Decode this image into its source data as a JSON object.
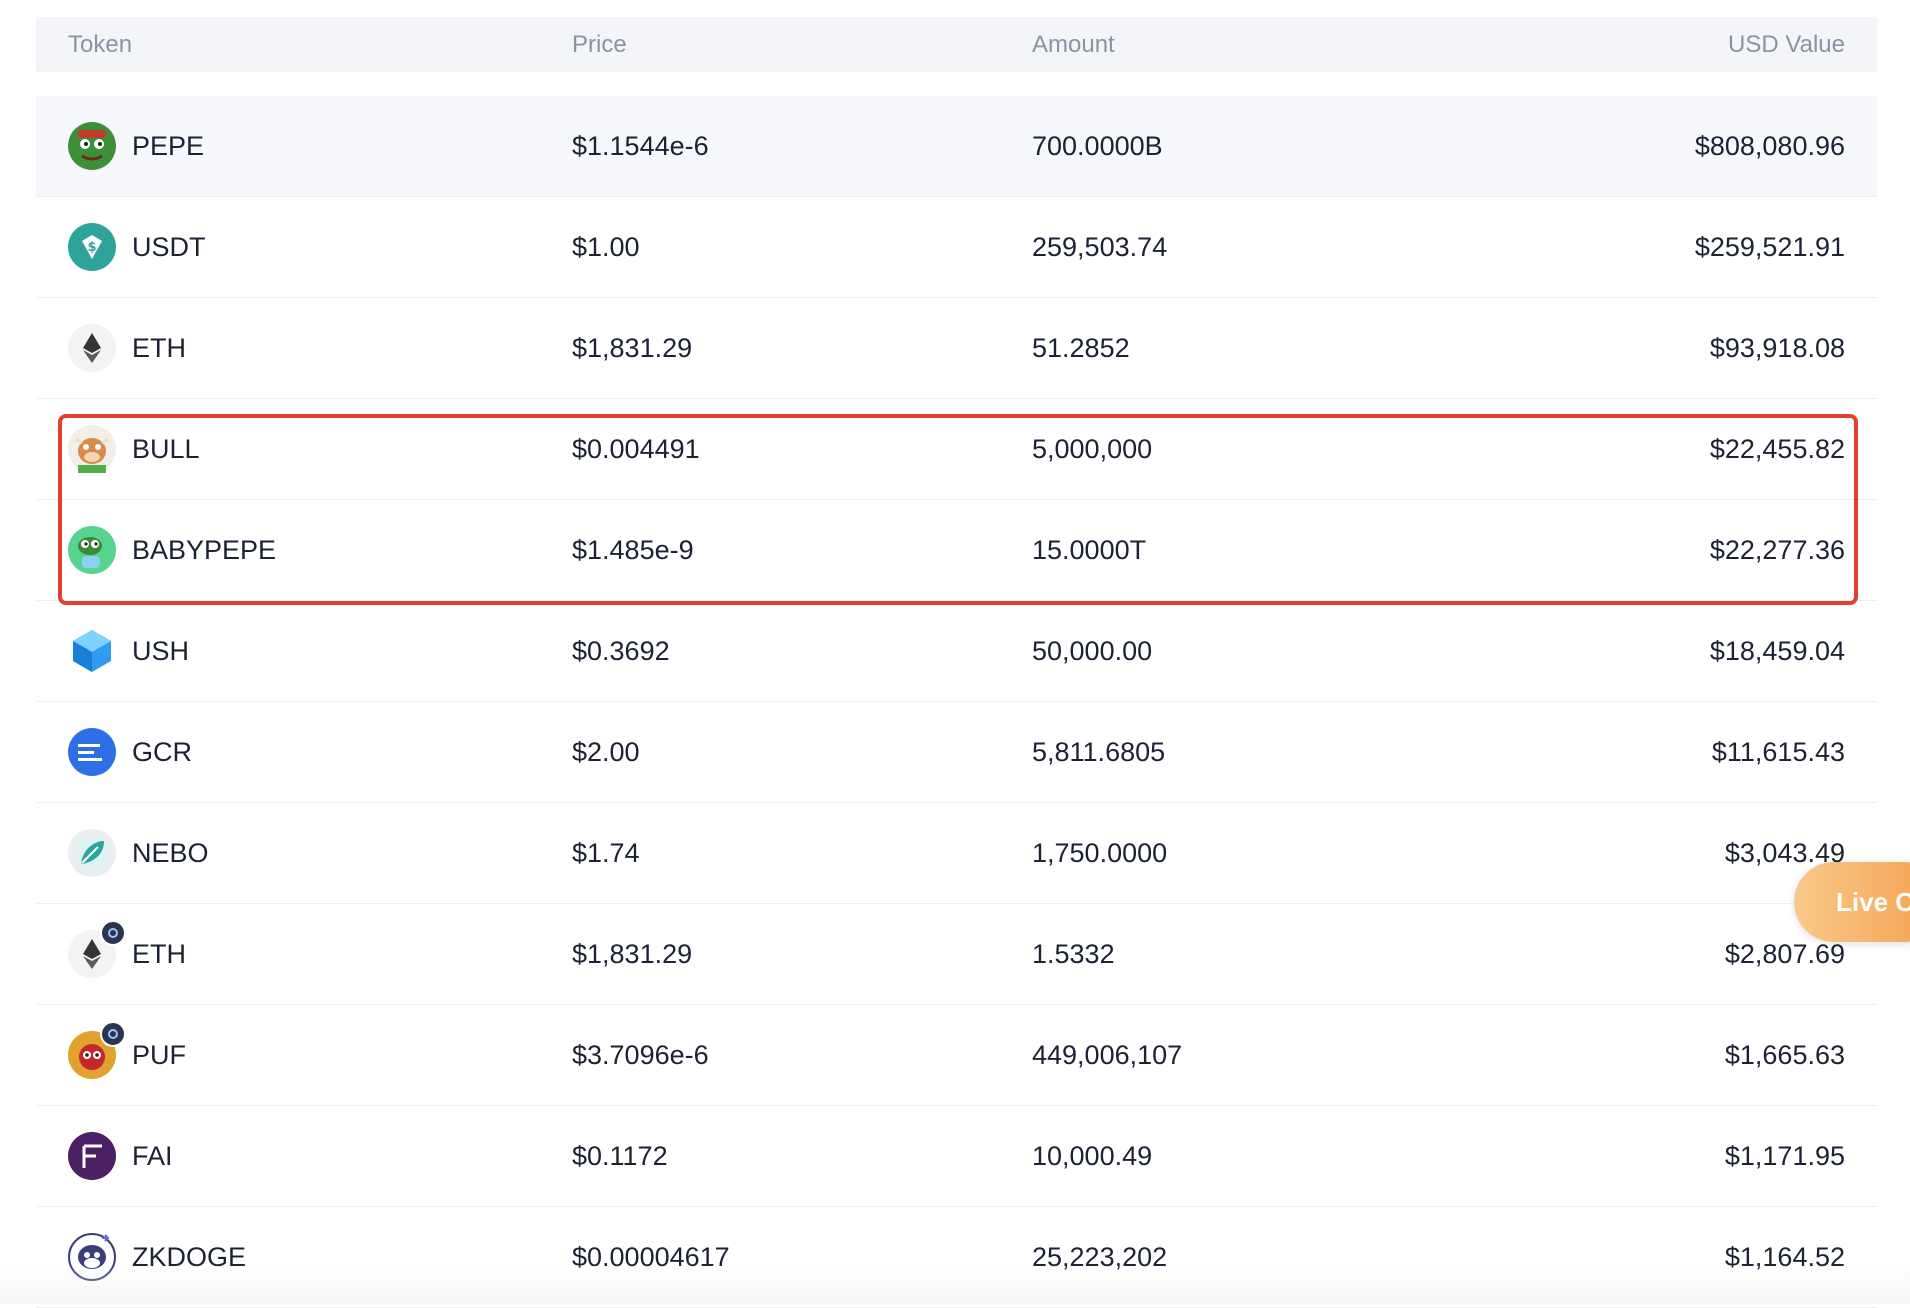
{
  "header": {
    "token": "Token",
    "price": "Price",
    "amount": "Amount",
    "usd_value": "USD Value"
  },
  "rows": [
    {
      "token": "PEPE",
      "price": "$1.1544e-6",
      "amount": "700.0000B",
      "usd": "$808,080.96",
      "icon": "pepe-icon",
      "color": "#3f8f3a"
    },
    {
      "token": "USDT",
      "price": "$1.00",
      "amount": "259,503.74",
      "usd": "$259,521.91",
      "icon": "usdt-icon",
      "color": "#2ea39a"
    },
    {
      "token": "ETH",
      "price": "$1,831.29",
      "amount": "51.2852",
      "usd": "$93,918.08",
      "icon": "eth-icon",
      "color": "#f2f3f5"
    },
    {
      "token": "BULL",
      "price": "$0.004491",
      "amount": "5,000,000",
      "usd": "$22,455.82",
      "icon": "bull-icon",
      "color": "#d98a4b"
    },
    {
      "token": "BABYPEPE",
      "price": "$1.485e-9",
      "amount": "15.0000T",
      "usd": "$22,277.36",
      "icon": "babypepe-icon",
      "color": "#56d38e"
    },
    {
      "token": "USH",
      "price": "$0.3692",
      "amount": "50,000.00",
      "usd": "$18,459.04",
      "icon": "ush-icon",
      "color": "#2f9cf0"
    },
    {
      "token": "GCR",
      "price": "$2.00",
      "amount": "5,811.6805",
      "usd": "$11,615.43",
      "icon": "gcr-icon",
      "color": "#2e6fe8"
    },
    {
      "token": "NEBO",
      "price": "$1.74",
      "amount": "1,750.0000",
      "usd": "$3,043.49",
      "icon": "nebo-icon",
      "color": "#dfeff0"
    },
    {
      "token": "ETH",
      "price": "$1,831.29",
      "amount": "1.5332",
      "usd": "$2,807.69",
      "icon": "eth-icon",
      "color": "#f2f3f5"
    },
    {
      "token": "PUF",
      "price": "$3.7096e-6",
      "amount": "449,006,107",
      "usd": "$1,665.63",
      "icon": "puf-icon",
      "color": "#e1a22f"
    },
    {
      "token": "FAI",
      "price": "$0.1172",
      "amount": "10,000.49",
      "usd": "$1,171.95",
      "icon": "fai-icon",
      "color": "#4a1f63"
    },
    {
      "token": "ZKDOGE",
      "price": "$0.00004617",
      "amount": "25,223,202",
      "usd": "$1,164.52",
      "icon": "zkdoge-icon",
      "color": "#3a3f7a"
    }
  ],
  "live_chat": {
    "label": "Live C"
  },
  "colors": {
    "highlight": "#e2402c",
    "header_bg": "#f3f5f9"
  }
}
